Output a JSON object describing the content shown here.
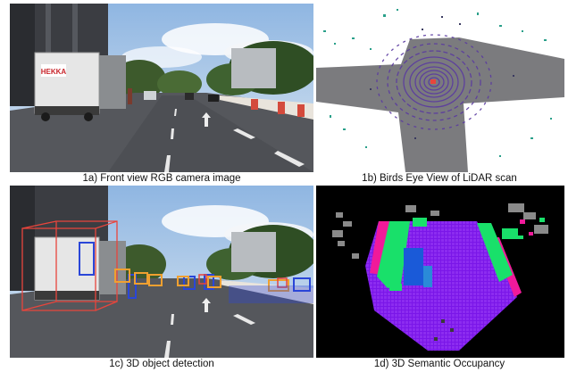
{
  "figure": {
    "panels": [
      {
        "id": "1a",
        "caption": "1a) Front view RGB camera image"
      },
      {
        "id": "1b",
        "caption": "1b) Birds Eye View of LiDAR scan"
      },
      {
        "id": "1c",
        "caption": "1c) 3D object detection"
      },
      {
        "id": "1d",
        "caption": "1d) 3D Semantic Occupancy"
      }
    ],
    "truck_sign_text": "HEKKA"
  },
  "colors": {
    "sky": "#a9c6e6",
    "road": "#505257",
    "lidar_ring": "#5a3aa0",
    "detection_red": "#e8453c",
    "detection_orange": "#f0a030",
    "detection_blue": "#2a46d8",
    "occupancy_purple": "#7a16e8",
    "occupancy_green": "#19e06a",
    "occupancy_magenta": "#f01a9a",
    "occupancy_blue": "#1a5ad8"
  }
}
